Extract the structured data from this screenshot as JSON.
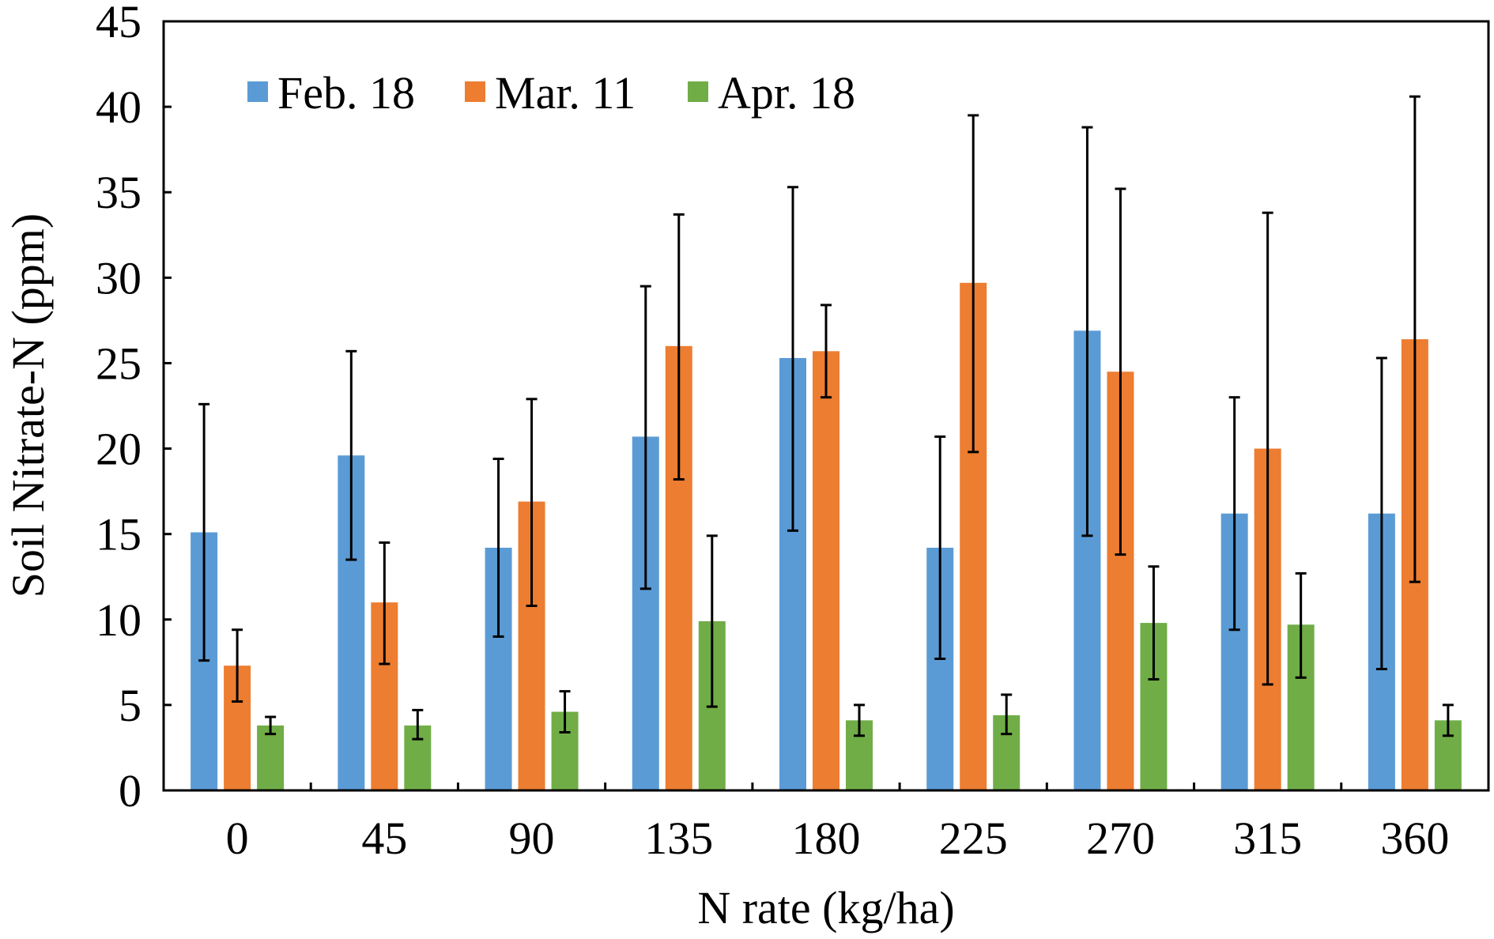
{
  "chart_data": {
    "type": "bar",
    "xlabel": "N rate (kg/ha)",
    "ylabel": "Soil Nitrate-N (ppm)",
    "ylim": [
      0,
      45
    ],
    "yticks": [
      0,
      5,
      10,
      15,
      20,
      25,
      30,
      35,
      40,
      45
    ],
    "grid": false,
    "legend_position": "top-left",
    "categories": [
      "0",
      "45",
      "90",
      "135",
      "180",
      "225",
      "270",
      "315",
      "360"
    ],
    "series": [
      {
        "name": "Feb. 18",
        "color": "#5B9BD5",
        "values": [
          15.1,
          19.6,
          14.2,
          20.7,
          25.3,
          14.2,
          26.9,
          16.2,
          16.2
        ],
        "error_low": [
          7.6,
          13.5,
          9.0,
          11.8,
          15.2,
          7.7,
          14.9,
          9.4,
          7.1
        ],
        "error_high": [
          22.6,
          25.7,
          19.4,
          29.5,
          35.3,
          20.7,
          38.8,
          23.0,
          25.3
        ]
      },
      {
        "name": "Mar. 11",
        "color": "#ED7D31",
        "values": [
          7.3,
          11.0,
          16.9,
          26.0,
          25.7,
          29.7,
          24.5,
          20.0,
          26.4
        ],
        "error_low": [
          5.2,
          7.4,
          10.8,
          18.2,
          23.0,
          19.8,
          13.8,
          6.2,
          12.2
        ],
        "error_high": [
          9.4,
          14.5,
          22.9,
          33.7,
          28.4,
          39.5,
          35.2,
          33.8,
          40.6
        ]
      },
      {
        "name": "Apr. 18",
        "color": "#70AD47",
        "values": [
          3.8,
          3.8,
          4.6,
          9.9,
          4.1,
          4.4,
          9.8,
          9.7,
          4.1
        ],
        "error_low": [
          3.3,
          3.0,
          3.4,
          4.9,
          3.2,
          3.3,
          6.5,
          6.6,
          3.2
        ],
        "error_high": [
          4.3,
          4.7,
          5.8,
          14.9,
          5.0,
          5.6,
          13.1,
          12.7,
          5.0
        ]
      }
    ]
  }
}
